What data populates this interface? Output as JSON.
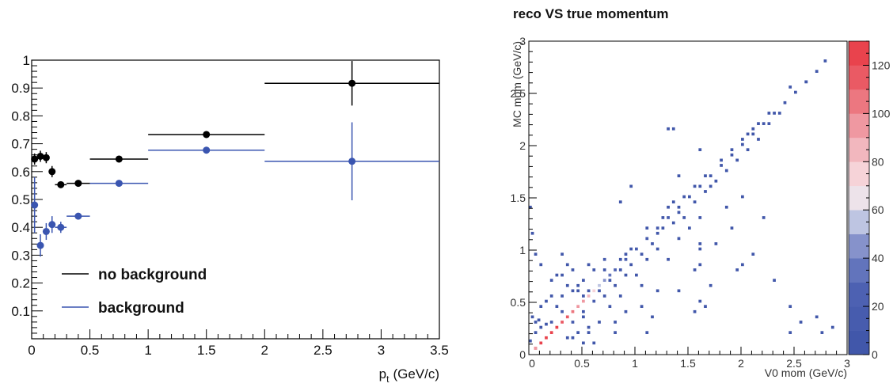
{
  "chart_data": [
    {
      "type": "scatter",
      "title": "",
      "xlabel": "p",
      "xlabel_sub": "t",
      "xlabel_unit": "(GeV/c)",
      "ylabel": "",
      "xlim": [
        0,
        3.5
      ],
      "ylim": [
        0,
        1.0
      ],
      "x_ticks": [
        "0",
        "0.5",
        "1",
        "1.5",
        "2",
        "2.5",
        "3",
        "3.5"
      ],
      "y_ticks": [
        "0.1",
        "0.2",
        "0.3",
        "0.4",
        "0.5",
        "0.6",
        "0.7",
        "0.8",
        "0.9",
        "1"
      ],
      "grid": false,
      "legend_position": "bottom-left",
      "series": [
        {
          "name": "no background",
          "color": "#000000",
          "points": [
            {
              "x": 0.025,
              "y": 0.645,
              "xerr": 0.025,
              "yerr": 0.02
            },
            {
              "x": 0.075,
              "y": 0.655,
              "xerr": 0.025,
              "yerr": 0.02
            },
            {
              "x": 0.125,
              "y": 0.65,
              "xerr": 0.025,
              "yerr": 0.02
            },
            {
              "x": 0.175,
              "y": 0.6,
              "xerr": 0.025,
              "yerr": 0.02
            },
            {
              "x": 0.25,
              "y": 0.553,
              "xerr": 0.05,
              "yerr": 0.01
            },
            {
              "x": 0.4,
              "y": 0.558,
              "xerr": 0.1,
              "yerr": 0.008
            },
            {
              "x": 0.75,
              "y": 0.645,
              "xerr": 0.25,
              "yerr": 0.008
            },
            {
              "x": 1.5,
              "y": 0.733,
              "xerr": 0.5,
              "yerr": 0.008
            },
            {
              "x": 2.75,
              "y": 0.917,
              "xerr": 0.75,
              "yerr": 0.08
            }
          ]
        },
        {
          "name": "background",
          "color": "#3a55b0",
          "points": [
            {
              "x": 0.025,
              "y": 0.48,
              "xerr": 0.025,
              "yerr": 0.1
            },
            {
              "x": 0.075,
              "y": 0.335,
              "xerr": 0.025,
              "yerr": 0.04
            },
            {
              "x": 0.125,
              "y": 0.385,
              "xerr": 0.025,
              "yerr": 0.03
            },
            {
              "x": 0.175,
              "y": 0.41,
              "xerr": 0.025,
              "yerr": 0.03
            },
            {
              "x": 0.25,
              "y": 0.4,
              "xerr": 0.05,
              "yerr": 0.02
            },
            {
              "x": 0.4,
              "y": 0.44,
              "xerr": 0.1,
              "yerr": 0.01
            },
            {
              "x": 0.75,
              "y": 0.558,
              "xerr": 0.25,
              "yerr": 0.008
            },
            {
              "x": 1.5,
              "y": 0.677,
              "xerr": 0.5,
              "yerr": 0.01
            },
            {
              "x": 2.75,
              "y": 0.637,
              "xerr": 0.75,
              "yerr": 0.14
            }
          ]
        }
      ]
    },
    {
      "type": "heatmap",
      "title": "reco VS true momentum",
      "xlabel": "V0 mom (GeV/c)",
      "ylabel": "MC mom (GeV/c)",
      "xlim": [
        0,
        3
      ],
      "ylim": [
        0,
        3
      ],
      "x_ticks": [
        "0",
        "0.5",
        "1",
        "1.5",
        "2",
        "2.5",
        "3"
      ],
      "y_ticks": [
        "0",
        "0.5",
        "1",
        "1.5",
        "2",
        "2.5",
        "3"
      ],
      "colorbar_ticks": [
        "0",
        "20",
        "40",
        "60",
        "80",
        "100",
        "120"
      ],
      "colorbar_range": [
        0,
        130
      ],
      "grid": false,
      "bin_width": 0.025,
      "cells": [
        [
          0.05,
          0.05,
          110
        ],
        [
          0.1,
          0.1,
          120
        ],
        [
          0.15,
          0.15,
          125
        ],
        [
          0.2,
          0.2,
          125
        ],
        [
          0.25,
          0.25,
          120
        ],
        [
          0.3,
          0.3,
          115
        ],
        [
          0.35,
          0.35,
          110
        ],
        [
          0.4,
          0.4,
          100
        ],
        [
          0.45,
          0.45,
          95
        ],
        [
          0.5,
          0.5,
          90
        ],
        [
          0.55,
          0.55,
          80
        ],
        [
          0.6,
          0.6,
          70
        ],
        [
          0.65,
          0.65,
          55
        ],
        [
          0.7,
          0.7,
          40
        ],
        [
          0.75,
          0.75,
          30
        ],
        [
          0.8,
          0.8,
          22
        ],
        [
          0.9,
          0.9,
          18
        ],
        [
          1.0,
          1.0,
          14
        ],
        [
          1.1,
          1.1,
          12
        ],
        [
          1.2,
          1.2,
          10
        ],
        [
          1.3,
          1.3,
          10
        ],
        [
          1.4,
          1.4,
          8
        ],
        [
          1.5,
          1.5,
          7
        ],
        [
          1.6,
          1.6,
          6
        ],
        [
          1.7,
          1.7,
          6
        ],
        [
          1.8,
          1.8,
          5
        ],
        [
          1.9,
          1.9,
          5
        ],
        [
          2.0,
          2.0,
          4
        ],
        [
          2.1,
          2.1,
          4
        ],
        [
          2.2,
          2.2,
          3
        ],
        [
          2.3,
          2.3,
          3
        ],
        [
          2.4,
          2.4,
          2
        ],
        [
          2.5,
          2.5,
          2
        ],
        [
          2.6,
          2.6,
          2
        ],
        [
          2.7,
          2.7,
          2
        ],
        [
          2.78,
          2.8,
          2
        ],
        [
          0.05,
          0.3,
          6
        ],
        [
          0.1,
          0.25,
          5
        ],
        [
          0.05,
          0.2,
          6
        ],
        [
          0.02,
          0.35,
          4
        ],
        [
          0.08,
          0.32,
          3
        ],
        [
          0.15,
          0.28,
          4
        ],
        [
          0.02,
          1.15,
          3
        ],
        [
          0.0,
          1.4,
          3
        ],
        [
          0.05,
          0.95,
          3
        ],
        [
          0.1,
          0.85,
          3
        ],
        [
          0.05,
          0.05,
          90
        ],
        [
          0.0,
          0.12,
          8
        ],
        [
          0.2,
          0.3,
          10
        ],
        [
          0.3,
          0.4,
          12
        ],
        [
          0.4,
          0.3,
          10
        ],
        [
          0.5,
          0.7,
          8
        ],
        [
          0.6,
          0.5,
          10
        ],
        [
          0.7,
          0.55,
          8
        ],
        [
          0.6,
          0.8,
          9
        ],
        [
          0.7,
          0.9,
          10
        ],
        [
          0.8,
          0.65,
          9
        ],
        [
          0.9,
          0.75,
          8
        ],
        [
          0.95,
          0.85,
          7
        ],
        [
          0.4,
          0.6,
          6
        ],
        [
          0.3,
          0.55,
          5
        ],
        [
          0.25,
          0.45,
          6
        ],
        [
          0.5,
          0.35,
          6
        ],
        [
          0.55,
          0.25,
          4
        ],
        [
          0.45,
          0.6,
          5
        ],
        [
          0.35,
          0.15,
          4
        ],
        [
          0.65,
          0.3,
          3
        ],
        [
          0.75,
          0.45,
          4
        ],
        [
          0.85,
          0.55,
          4
        ],
        [
          0.9,
          0.4,
          3
        ],
        [
          0.8,
          0.3,
          3
        ],
        [
          0.55,
          0.85,
          4
        ],
        [
          1.05,
          0.95,
          6
        ],
        [
          1.15,
          1.05,
          6
        ],
        [
          1.2,
          1.15,
          5
        ],
        [
          1.25,
          1.3,
          5
        ],
        [
          1.35,
          1.25,
          6
        ],
        [
          1.4,
          1.35,
          5
        ],
        [
          1.45,
          1.3,
          4
        ],
        [
          1.3,
          1.4,
          4
        ],
        [
          1.25,
          1.2,
          6
        ],
        [
          1.1,
          1.2,
          5
        ],
        [
          1.35,
          1.45,
          4
        ],
        [
          1.45,
          1.5,
          4
        ],
        [
          1.55,
          1.45,
          4
        ],
        [
          1.65,
          1.55,
          3
        ],
        [
          1.75,
          1.65,
          3
        ],
        [
          1.85,
          1.75,
          3
        ],
        [
          1.95,
          1.85,
          3
        ],
        [
          2.05,
          1.95,
          3
        ],
        [
          1.8,
          1.85,
          4
        ],
        [
          1.9,
          1.95,
          4
        ],
        [
          2.0,
          2.05,
          3
        ],
        [
          2.15,
          2.05,
          3
        ],
        [
          2.25,
          2.2,
          3
        ],
        [
          2.35,
          2.3,
          2
        ],
        [
          0.95,
          1.6,
          4
        ],
        [
          1.35,
          2.15,
          4
        ],
        [
          1.7,
          1.6,
          4
        ],
        [
          1.85,
          1.4,
          3
        ],
        [
          1.75,
          1.05,
          3
        ],
        [
          2.1,
          0.95,
          3
        ],
        [
          0.3,
          0.95,
          5
        ],
        [
          0.35,
          0.85,
          4
        ],
        [
          0.45,
          0.65,
          4
        ],
        [
          0.5,
          0.55,
          5
        ],
        [
          0.55,
          0.6,
          7
        ],
        [
          0.65,
          0.6,
          8
        ],
        [
          0.7,
          0.8,
          7
        ],
        [
          0.75,
          0.7,
          8
        ],
        [
          0.85,
          0.8,
          7
        ],
        [
          0.95,
          1.0,
          6
        ],
        [
          0.9,
          0.95,
          6
        ],
        [
          0.85,
          0.9,
          6
        ],
        [
          1.0,
          0.75,
          4
        ],
        [
          1.1,
          0.9,
          4
        ],
        [
          1.2,
          1.0,
          4
        ],
        [
          1.3,
          0.9,
          3
        ],
        [
          1.4,
          1.1,
          3
        ],
        [
          1.5,
          1.2,
          3
        ],
        [
          1.6,
          1.3,
          3
        ],
        [
          1.55,
          1.6,
          3
        ],
        [
          1.65,
          1.7,
          3
        ],
        [
          1.9,
          1.2,
          3
        ],
        [
          2.0,
          1.5,
          3
        ],
        [
          2.2,
          1.3,
          3
        ],
        [
          1.6,
          1.05,
          4
        ],
        [
          1.6,
          1.0,
          4
        ],
        [
          1.05,
          0.65,
          4
        ],
        [
          1.4,
          0.6,
          3
        ],
        [
          1.55,
          0.4,
          3
        ],
        [
          1.05,
          0.45,
          4
        ],
        [
          1.2,
          0.6,
          3
        ],
        [
          1.15,
          0.35,
          3
        ],
        [
          1.7,
          0.65,
          3
        ],
        [
          1.65,
          0.45,
          3
        ],
        [
          1.6,
          0.5,
          3
        ],
        [
          0.6,
          0.1,
          4
        ],
        [
          0.5,
          0.1,
          4
        ],
        [
          0.55,
          0.2,
          3
        ],
        [
          0.45,
          0.2,
          4
        ],
        [
          0.4,
          0.15,
          4
        ],
        [
          0.5,
          0.4,
          7
        ],
        [
          0.8,
          0.2,
          3
        ],
        [
          1.1,
          0.2,
          3
        ],
        [
          1.55,
          0.8,
          4
        ],
        [
          1.6,
          0.85,
          4
        ],
        [
          2.0,
          0.85,
          3
        ],
        [
          1.95,
          0.8,
          3
        ],
        [
          2.3,
          0.7,
          3
        ],
        [
          2.45,
          0.45,
          4
        ],
        [
          2.55,
          0.3,
          3
        ],
        [
          2.45,
          0.2,
          3
        ],
        [
          2.7,
          0.35,
          3
        ],
        [
          2.75,
          0.2,
          3
        ],
        [
          2.85,
          0.25,
          3
        ],
        [
          0.15,
          0.5,
          4
        ],
        [
          0.2,
          0.55,
          3
        ],
        [
          0.1,
          0.45,
          4
        ],
        [
          1.3,
          2.15,
          3
        ],
        [
          2.45,
          2.55,
          3
        ],
        [
          2.6,
          2.6,
          3
        ],
        [
          2.05,
          2.1,
          3
        ],
        [
          2.1,
          2.15,
          3
        ],
        [
          2.15,
          2.2,
          3
        ],
        [
          2.25,
          2.3,
          3
        ],
        [
          0.85,
          1.45,
          3
        ],
        [
          0.2,
          0.7,
          3
        ],
        [
          0.25,
          0.75,
          4
        ],
        [
          0.35,
          0.65,
          4
        ],
        [
          0.4,
          0.8,
          4
        ],
        [
          0.3,
          0.75,
          3
        ],
        [
          1.4,
          1.7,
          3
        ],
        [
          1.6,
          1.95,
          3
        ]
      ]
    }
  ]
}
